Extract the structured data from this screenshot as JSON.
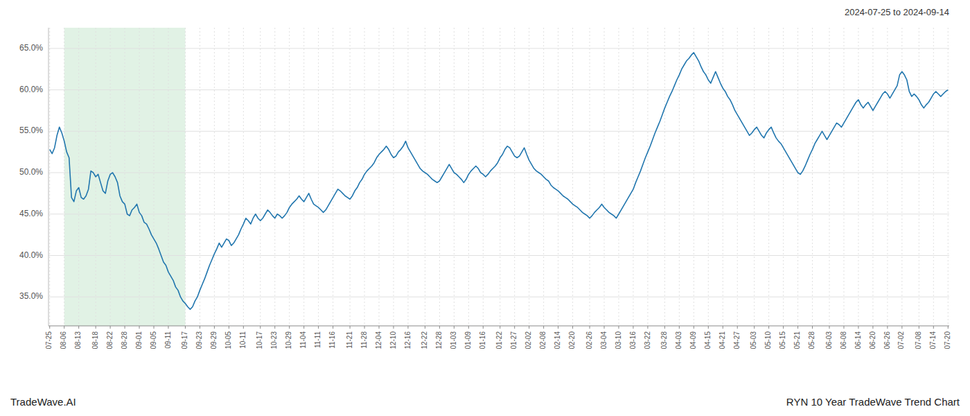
{
  "chart_data": {
    "type": "line",
    "title": "RYN 10 Year TradeWave Trend Chart",
    "subtitle": "2024-07-25 to 2024-09-14",
    "annotations": [
      "TradeWave.AI"
    ],
    "color": "#2176ae",
    "grid": true,
    "highlight": {
      "start": "08-06",
      "end": "09-17",
      "color": "#d4edda"
    },
    "ylim": [
      0.315,
      0.675
    ],
    "yticks": [
      {
        "value": 0.35,
        "label": "35.0%"
      },
      {
        "value": 0.4,
        "label": "40.0%"
      },
      {
        "value": 0.45,
        "label": "45.0%"
      },
      {
        "value": 0.5,
        "label": "50.0%"
      },
      {
        "value": 0.55,
        "label": "55.0%"
      },
      {
        "value": 0.6,
        "label": "60.0%"
      },
      {
        "value": 0.65,
        "label": "65.0%"
      }
    ],
    "categories": [
      "07-25",
      null,
      null,
      null,
      null,
      null,
      "08-06",
      null,
      null,
      null,
      null,
      null,
      "08-13",
      null,
      null,
      null,
      null,
      null,
      null,
      "08-18",
      null,
      null,
      null,
      null,
      null,
      "08-22",
      null,
      null,
      null,
      null,
      null,
      "08-28",
      null,
      null,
      null,
      null,
      null,
      "09-01",
      null,
      null,
      null,
      null,
      null,
      "09-05",
      null,
      null,
      null,
      null,
      null,
      "09-11",
      null,
      null,
      null,
      null,
      null,
      null,
      "09-17",
      null,
      null,
      null,
      null,
      null,
      "09-23",
      null,
      null,
      null,
      null,
      null,
      "09-29",
      null,
      null,
      null,
      null,
      null,
      "10-05",
      null,
      null,
      null,
      null,
      null,
      "10-11",
      null,
      null,
      null,
      null,
      null,
      null,
      "10-17",
      null,
      null,
      null,
      null,
      null,
      "10-23",
      null,
      null,
      null,
      null,
      null,
      "10-29",
      null,
      null,
      null,
      null,
      null,
      "11-04",
      null,
      null,
      null,
      null,
      null,
      "11-11",
      null,
      null,
      null,
      null,
      null,
      "11-16",
      null,
      null,
      null,
      null,
      null,
      null,
      "11-21",
      null,
      null,
      null,
      null,
      null,
      "11-28",
      null,
      null,
      null,
      null,
      null,
      "12-04",
      null,
      null,
      null,
      null,
      null,
      "12-10",
      null,
      null,
      null,
      null,
      null,
      "12-16",
      null,
      null,
      null,
      null,
      null,
      null,
      "12-22",
      null,
      null,
      null,
      null,
      null,
      "12-28",
      null,
      null,
      null,
      null,
      null,
      "01-03",
      null,
      null,
      null,
      null,
      null,
      "01-09",
      null,
      null,
      null,
      null,
      null,
      "01-16",
      null,
      null,
      null,
      null,
      null,
      null,
      "01-22",
      null,
      null,
      null,
      null,
      null,
      "01-27",
      null,
      null,
      null,
      null,
      null,
      "02-02",
      null,
      null,
      null,
      null,
      null,
      "02-08",
      null,
      null,
      null,
      null,
      null,
      "02-14",
      null,
      null,
      null,
      null,
      null,
      "02-20",
      null,
      null,
      null,
      null,
      null,
      null,
      "02-26",
      null,
      null,
      null,
      null,
      null,
      "03-04",
      null,
      null,
      null,
      null,
      null,
      "03-10",
      null,
      null,
      null,
      null,
      null,
      "03-16",
      null,
      null,
      null,
      null,
      null,
      "03-22",
      null,
      null,
      null,
      null,
      null,
      null,
      "03-28",
      null,
      null,
      null,
      null,
      null,
      "04-03",
      null,
      null,
      null,
      null,
      null,
      "04-09",
      null,
      null,
      null,
      null,
      null,
      "04-15",
      null,
      null,
      null,
      null,
      null,
      "04-21",
      null,
      null,
      null,
      null,
      null,
      "04-27",
      null,
      null,
      null,
      null,
      null,
      null,
      "05-03",
      null,
      null,
      null,
      null,
      null,
      "05-10",
      null,
      null,
      null,
      null,
      null,
      "05-15",
      null,
      null,
      null,
      null,
      null,
      "05-21",
      null,
      null,
      null,
      null,
      null,
      "05-28",
      null,
      null,
      null,
      null,
      null,
      null,
      "06-03",
      null,
      null,
      null,
      null,
      null,
      "06-08",
      null,
      null,
      null,
      null,
      null,
      "06-14",
      null,
      null,
      null,
      null,
      null,
      "06-20",
      null,
      null,
      null,
      null,
      null,
      "06-26",
      null,
      null,
      null,
      null,
      null,
      "07-02",
      null,
      null,
      null,
      null,
      null,
      null,
      "07-08",
      null,
      null,
      null,
      null,
      null,
      "07-14",
      null,
      null,
      null,
      null,
      null,
      "07-20"
    ],
    "values": [
      0.528,
      0.523,
      0.53,
      0.545,
      0.555,
      0.548,
      0.538,
      0.525,
      0.518,
      0.47,
      0.465,
      0.478,
      0.482,
      0.47,
      0.468,
      0.472,
      0.48,
      0.502,
      0.5,
      0.495,
      0.498,
      0.488,
      0.478,
      0.475,
      0.49,
      0.498,
      0.5,
      0.495,
      0.488,
      0.472,
      0.465,
      0.462,
      0.45,
      0.448,
      0.455,
      0.458,
      0.462,
      0.452,
      0.448,
      0.44,
      0.438,
      0.432,
      0.425,
      0.42,
      0.415,
      0.408,
      0.4,
      0.392,
      0.388,
      0.38,
      0.375,
      0.37,
      0.362,
      0.358,
      0.35,
      0.345,
      0.342,
      0.338,
      0.335,
      0.338,
      0.345,
      0.35,
      0.358,
      0.365,
      0.372,
      0.38,
      0.388,
      0.395,
      0.402,
      0.408,
      0.415,
      0.41,
      0.415,
      0.42,
      0.418,
      0.412,
      0.415,
      0.42,
      0.425,
      0.432,
      0.438,
      0.445,
      0.442,
      0.438,
      0.445,
      0.45,
      0.445,
      0.442,
      0.445,
      0.45,
      0.455,
      0.452,
      0.448,
      0.445,
      0.45,
      0.448,
      0.445,
      0.448,
      0.452,
      0.458,
      0.462,
      0.465,
      0.468,
      0.472,
      0.468,
      0.465,
      0.47,
      0.475,
      0.468,
      0.462,
      0.46,
      0.458,
      0.455,
      0.452,
      0.455,
      0.46,
      0.465,
      0.47,
      0.475,
      0.48,
      0.478,
      0.475,
      0.472,
      0.47,
      0.468,
      0.472,
      0.478,
      0.482,
      0.488,
      0.492,
      0.498,
      0.502,
      0.505,
      0.508,
      0.512,
      0.518,
      0.522,
      0.525,
      0.528,
      0.532,
      0.528,
      0.522,
      0.518,
      0.52,
      0.525,
      0.528,
      0.532,
      0.538,
      0.53,
      0.525,
      0.52,
      0.515,
      0.51,
      0.505,
      0.502,
      0.5,
      0.498,
      0.495,
      0.492,
      0.49,
      0.488,
      0.49,
      0.495,
      0.5,
      0.505,
      0.51,
      0.505,
      0.5,
      0.498,
      0.495,
      0.492,
      0.488,
      0.492,
      0.498,
      0.502,
      0.505,
      0.508,
      0.505,
      0.5,
      0.498,
      0.495,
      0.498,
      0.502,
      0.505,
      0.508,
      0.512,
      0.518,
      0.522,
      0.528,
      0.532,
      0.53,
      0.525,
      0.52,
      0.518,
      0.52,
      0.525,
      0.53,
      0.522,
      0.515,
      0.51,
      0.505,
      0.502,
      0.5,
      0.498,
      0.495,
      0.492,
      0.49,
      0.485,
      0.482,
      0.48,
      0.478,
      0.475,
      0.472,
      0.47,
      0.468,
      0.465,
      0.462,
      0.46,
      0.458,
      0.455,
      0.452,
      0.45,
      0.448,
      0.445,
      0.448,
      0.452,
      0.455,
      0.458,
      0.462,
      0.458,
      0.455,
      0.452,
      0.45,
      0.448,
      0.445,
      0.45,
      0.455,
      0.46,
      0.465,
      0.47,
      0.475,
      0.48,
      0.488,
      0.495,
      0.502,
      0.51,
      0.518,
      0.525,
      0.532,
      0.54,
      0.548,
      0.555,
      0.562,
      0.57,
      0.578,
      0.585,
      0.592,
      0.598,
      0.605,
      0.612,
      0.618,
      0.625,
      0.63,
      0.635,
      0.638,
      0.642,
      0.645,
      0.64,
      0.635,
      0.628,
      0.622,
      0.618,
      0.612,
      0.608,
      0.615,
      0.622,
      0.615,
      0.608,
      0.602,
      0.598,
      0.592,
      0.588,
      0.582,
      0.575,
      0.57,
      0.565,
      0.56,
      0.555,
      0.55,
      0.545,
      0.548,
      0.552,
      0.555,
      0.55,
      0.545,
      0.542,
      0.548,
      0.552,
      0.555,
      0.548,
      0.542,
      0.538,
      0.535,
      0.53,
      0.525,
      0.52,
      0.515,
      0.51,
      0.505,
      0.5,
      0.498,
      0.502,
      0.508,
      0.515,
      0.522,
      0.528,
      0.535,
      0.54,
      0.545,
      0.55,
      0.545,
      0.54,
      0.545,
      0.55,
      0.555,
      0.56,
      0.558,
      0.555,
      0.56,
      0.565,
      0.57,
      0.575,
      0.58,
      0.585,
      0.588,
      0.582,
      0.578,
      0.582,
      0.585,
      0.58,
      0.575,
      0.58,
      0.585,
      0.59,
      0.595,
      0.598,
      0.595,
      0.59,
      0.595,
      0.6,
      0.605,
      0.618,
      0.622,
      0.618,
      0.612,
      0.598,
      0.592,
      0.595,
      0.592,
      0.588,
      0.582,
      0.578,
      0.582,
      0.585,
      0.59,
      0.595,
      0.598,
      0.595,
      0.592,
      0.595,
      0.598,
      0.6
    ]
  }
}
